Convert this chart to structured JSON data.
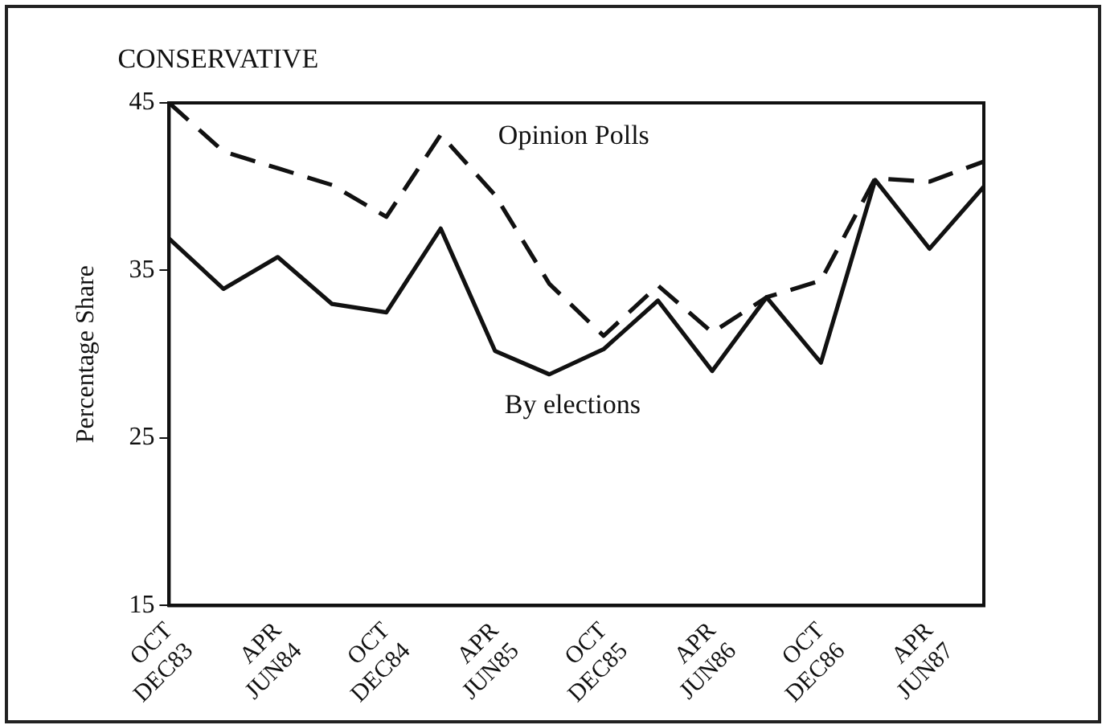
{
  "chart_data": {
    "type": "line",
    "title": "CONSERVATIVE",
    "ylabel": "Percentage Share",
    "categories": [
      "OCT DEC83",
      null,
      "APR JUN84",
      null,
      "OCT DEC84",
      null,
      "APR JUN85",
      null,
      "OCT DEC85",
      null,
      "APR JUN86",
      null,
      "OCT DEC86",
      null,
      "APR JUN87",
      null
    ],
    "series": [
      {
        "name": "Opinion Polls",
        "color": "#111111",
        "line_style": "dashed",
        "values": [
          45.0,
          42.1,
          41.1,
          40.1,
          38.2,
          43.1,
          39.5,
          34.2,
          31.1,
          34.1,
          31.3,
          33.4,
          34.4,
          40.5,
          40.3,
          41.5
        ]
      },
      {
        "name": "By elections",
        "color": "#111111",
        "line_style": "solid",
        "values": [
          36.9,
          33.9,
          35.8,
          33.0,
          32.5,
          37.5,
          30.2,
          28.8,
          30.3,
          33.2,
          29.0,
          33.4,
          29.5,
          40.4,
          36.3,
          40.0
        ]
      }
    ],
    "ylim": [
      15,
      45
    ],
    "yticks": [
      15,
      25,
      35,
      45
    ],
    "grid": false,
    "legend": false,
    "marker": "none"
  }
}
